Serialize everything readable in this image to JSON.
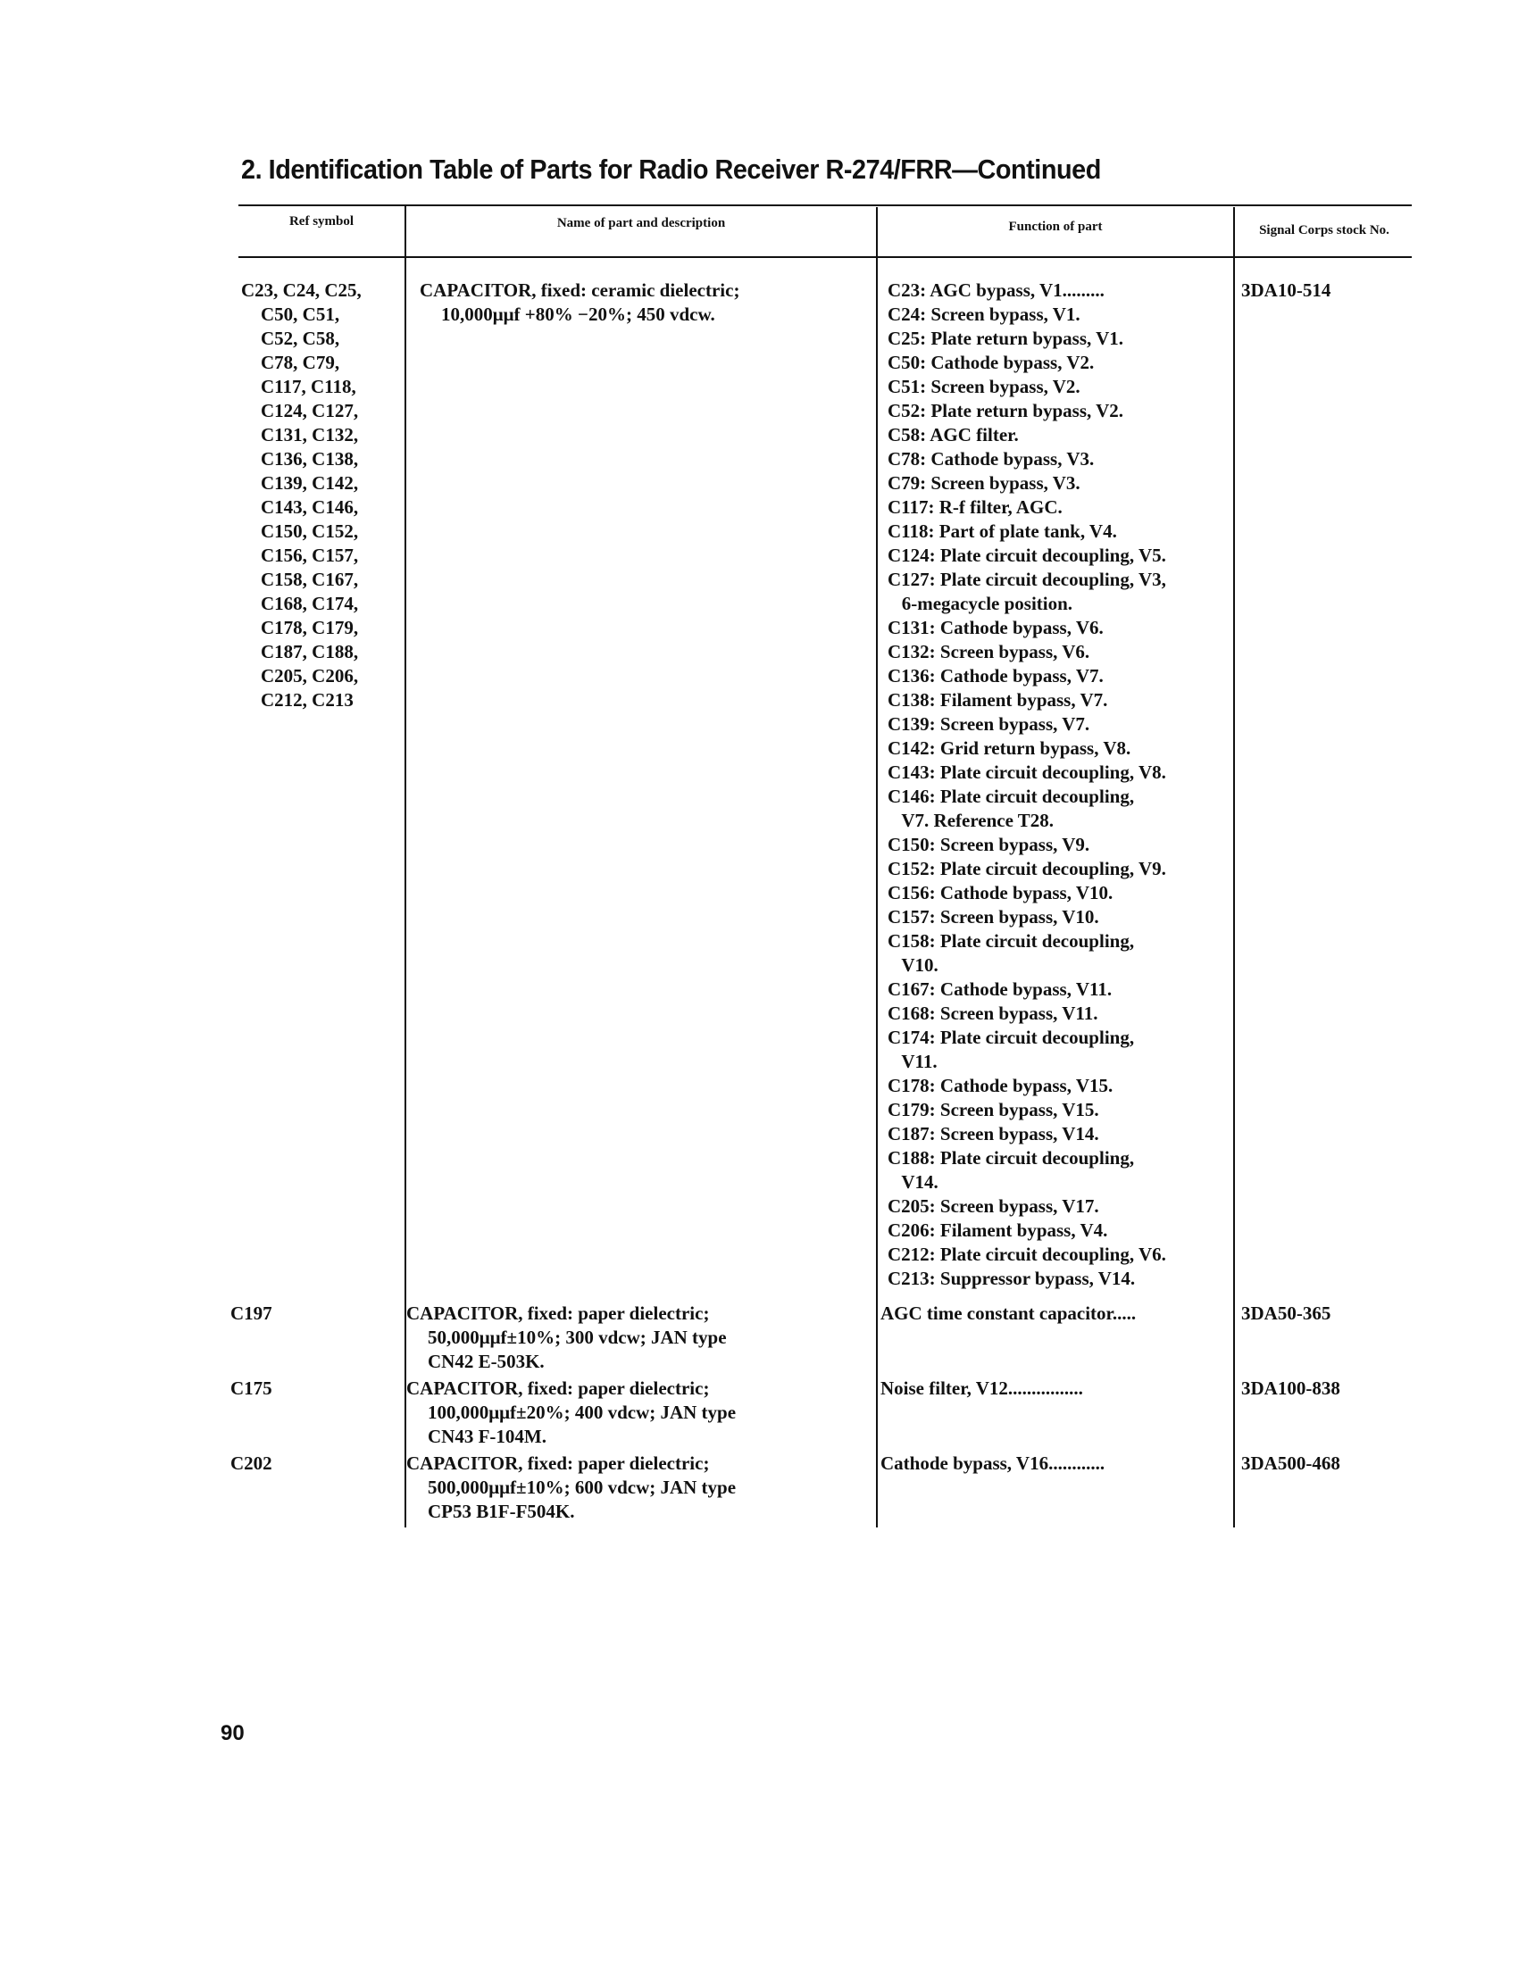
{
  "title": "2. Identification Table of Parts for Radio Receiver R-274/FRR—Continued",
  "headers": [
    "Ref symbol",
    "Name of part and description",
    "Function of part",
    "Signal Corps stock No."
  ],
  "rows": [
    {
      "ref": [
        "C23, C24, C25,",
        "C50, C51,",
        "C52, C58,",
        "C78, C79,",
        "C117, C118,",
        "C124, C127,",
        "C131, C132,",
        "C136, C138,",
        "C139, C142,",
        "C143, C146,",
        "C150, C152,",
        "C156, C157,",
        "C158, C167,",
        "C168, C174,",
        "C178, C179,",
        "C187, C188,",
        "C205, C206,",
        "C212, C213"
      ],
      "description": [
        "CAPACITOR, fixed: ceramic dielectric;",
        "10,000μμf +80% −20%; 450 vdcw."
      ],
      "function": [
        "C23: AGC bypass, V1.........",
        "C24: Screen bypass, V1.",
        "C25: Plate return bypass, V1.",
        "C50: Cathode bypass, V2.",
        "C51: Screen bypass, V2.",
        "C52: Plate return bypass, V2.",
        "C58: AGC filter.",
        "C78: Cathode bypass, V3.",
        "C79: Screen bypass, V3.",
        "C117: R-f filter, AGC.",
        "C118: Part of plate tank, V4.",
        "C124: Plate circuit decoupling, V5.",
        "C127: Plate circuit decoupling, V3,",
        "   6-megacycle position.",
        "C131: Cathode bypass, V6.",
        "C132: Screen bypass, V6.",
        "C136: Cathode bypass, V7.",
        "C138: Filament bypass, V7.",
        "C139: Screen bypass, V7.",
        "C142: Grid return bypass, V8.",
        "C143: Plate circuit decoupling, V8.",
        "C146: Plate circuit decoupling,",
        "   V7. Reference T28.",
        "C150: Screen bypass, V9.",
        "C152: Plate circuit decoupling, V9.",
        "C156: Cathode bypass, V10.",
        "C157: Screen bypass, V10.",
        "C158: Plate circuit decoupling,",
        "   V10.",
        "C167: Cathode bypass, V11.",
        "C168: Screen bypass, V11.",
        "C174: Plate circuit decoupling,",
        "   V11.",
        "C178: Cathode bypass, V15.",
        "C179: Screen bypass, V15.",
        "C187: Screen bypass, V14.",
        "C188: Plate circuit decoupling,",
        "   V14.",
        "C205: Screen bypass, V17.",
        "C206: Filament bypass, V4.",
        "C212: Plate circuit decoupling, V6.",
        "C213: Suppressor bypass, V14."
      ],
      "stock": "3DA10-514"
    },
    {
      "ref": [
        "C197"
      ],
      "description": [
        "CAPACITOR, fixed: paper dielectric;",
        "50,000μμf±10%; 300 vdcw; JAN type",
        "CN42 E-503K."
      ],
      "function": [
        "AGC time constant capacitor....."
      ],
      "stock": "3DA50-365"
    },
    {
      "ref": [
        "C175"
      ],
      "description": [
        "CAPACITOR, fixed: paper dielectric;",
        "100,000μμf±20%; 400 vdcw; JAN type",
        "CN43 F-104M."
      ],
      "function": [
        "Noise filter, V12................"
      ],
      "stock": "3DA100-838"
    },
    {
      "ref": [
        "C202"
      ],
      "description": [
        "CAPACITOR, fixed: paper dielectric;",
        "500,000μμf±10%; 600 vdcw; JAN type",
        "CP53 B1F-F504K."
      ],
      "function": [
        "Cathode bypass, V16............"
      ],
      "stock": "3DA500-468"
    }
  ],
  "page_number": "90"
}
